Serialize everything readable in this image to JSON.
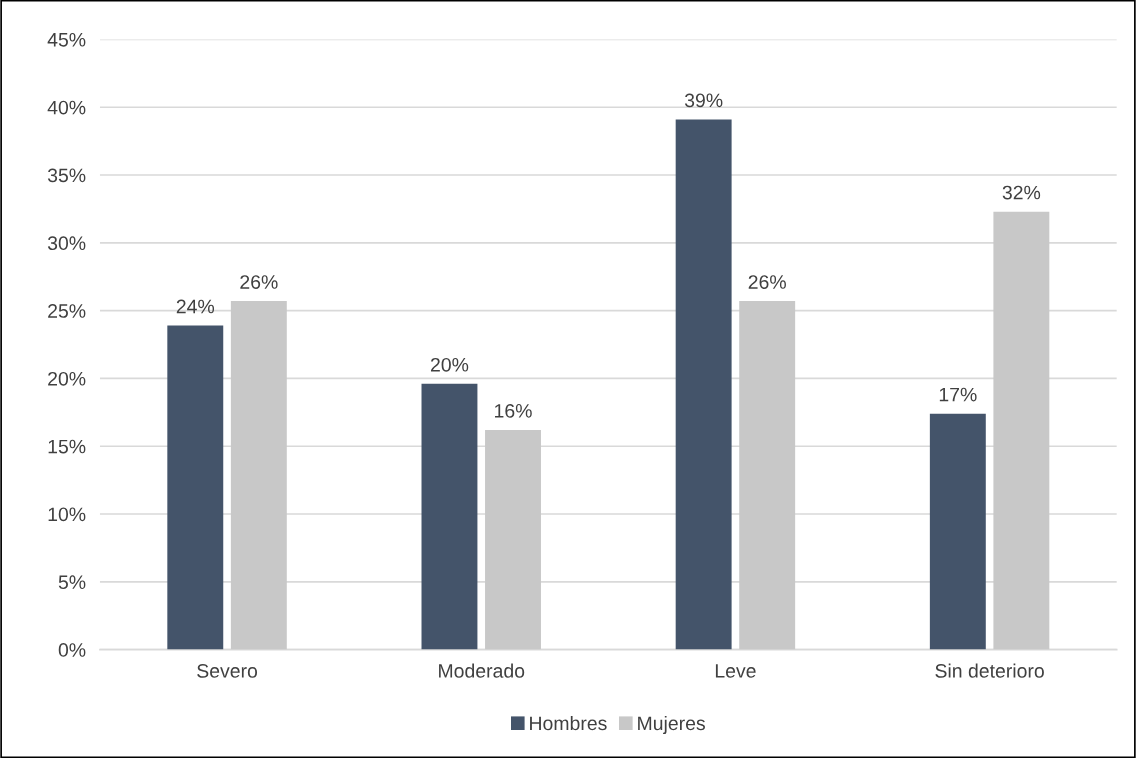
{
  "chart_data": {
    "type": "bar",
    "categories": [
      "Severo",
      "Moderado",
      "Leve",
      "Sin deterioro"
    ],
    "series": [
      {
        "name": "Hombres",
        "color": "#44546a",
        "values": [
          23.9,
          19.6,
          39.1,
          17.4
        ],
        "value_labels": [
          "24%",
          "20%",
          "39%",
          "17%"
        ]
      },
      {
        "name": "Mujeres",
        "color": "#c8c8c8",
        "values": [
          25.7,
          16.2,
          25.7,
          32.3
        ],
        "value_labels": [
          "26%",
          "16%",
          "26%",
          "32%"
        ]
      }
    ],
    "ylim": [
      0,
      45
    ],
    "yticks": [
      {
        "value": 0,
        "label": "0%"
      },
      {
        "value": 5,
        "label": "5%"
      },
      {
        "value": 10,
        "label": "10%"
      },
      {
        "value": 15,
        "label": "15%"
      },
      {
        "value": 20,
        "label": "20%"
      },
      {
        "value": 25,
        "label": "25%"
      },
      {
        "value": 30,
        "label": "30%"
      },
      {
        "value": 35,
        "label": "35%"
      },
      {
        "value": 40,
        "label": "40%"
      },
      {
        "value": 45,
        "label": "45%"
      }
    ],
    "grid": "y",
    "legend": "bottom"
  }
}
